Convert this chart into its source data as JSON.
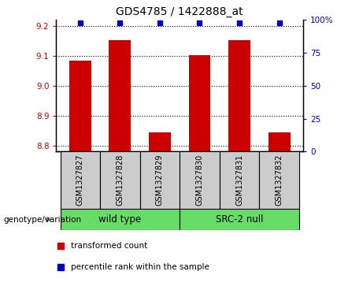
{
  "title": "GDS4785 / 1422888_at",
  "samples": [
    "GSM1327827",
    "GSM1327828",
    "GSM1327829",
    "GSM1327830",
    "GSM1327831",
    "GSM1327832"
  ],
  "red_values": [
    9.083,
    9.153,
    8.845,
    9.103,
    9.153,
    8.845
  ],
  "blue_values": [
    98,
    98,
    98,
    98,
    98,
    98
  ],
  "ylim_left": [
    8.78,
    9.22
  ],
  "ylim_right": [
    0,
    100
  ],
  "yticks_left": [
    8.8,
    8.9,
    9.0,
    9.1,
    9.2
  ],
  "yticks_right": [
    0,
    25,
    50,
    75,
    100
  ],
  "groups": [
    {
      "label": "wild type",
      "color": "#66DD66"
    },
    {
      "label": "SRC-2 null",
      "color": "#66DD66"
    }
  ],
  "group_label_prefix": "genotype/variation",
  "legend_red": "transformed count",
  "legend_blue": "percentile rank within the sample",
  "bar_color": "#cc0000",
  "dot_color": "#0000cc",
  "background_color": "#cccccc",
  "bar_bottom": 8.78,
  "bar_width": 0.55
}
